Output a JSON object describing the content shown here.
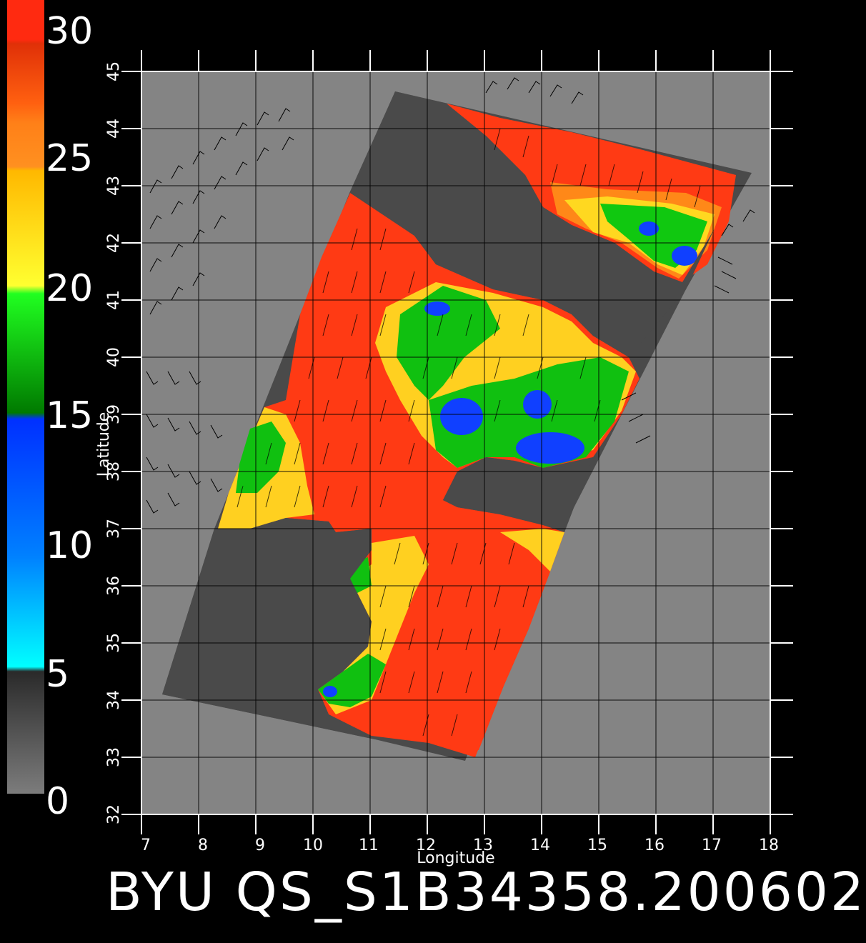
{
  "colorbar": {
    "labels": [
      "30",
      "25",
      "20",
      "15",
      "10",
      "5",
      "0"
    ],
    "colors": {
      "red": "#ff2a10",
      "orange": "#ff7a10",
      "yellow": "#ffe020",
      "green": "#00c800",
      "blue": "#1040ff",
      "cyan": "#00e8ff",
      "gray": "#777777"
    }
  },
  "axes": {
    "xlabel": "Longitude",
    "ylabel": "Latitude",
    "lon_ticks": [
      "7",
      "8",
      "9",
      "10",
      "11",
      "12",
      "13",
      "14",
      "15",
      "16",
      "17",
      "18"
    ],
    "lat_ticks": [
      "32",
      "33",
      "34",
      "35",
      "36",
      "37",
      "38",
      "39",
      "40",
      "41",
      "42",
      "43",
      "44",
      "45"
    ],
    "lon_range": [
      7,
      18
    ],
    "lat_range": [
      32,
      45
    ]
  },
  "title": "BYU  QS_S1B34358.200602",
  "colors": {
    "background": "#000000",
    "land": "#848484",
    "swath": "#4a4a4a",
    "grid": "#000000",
    "text": "#ffffff"
  }
}
